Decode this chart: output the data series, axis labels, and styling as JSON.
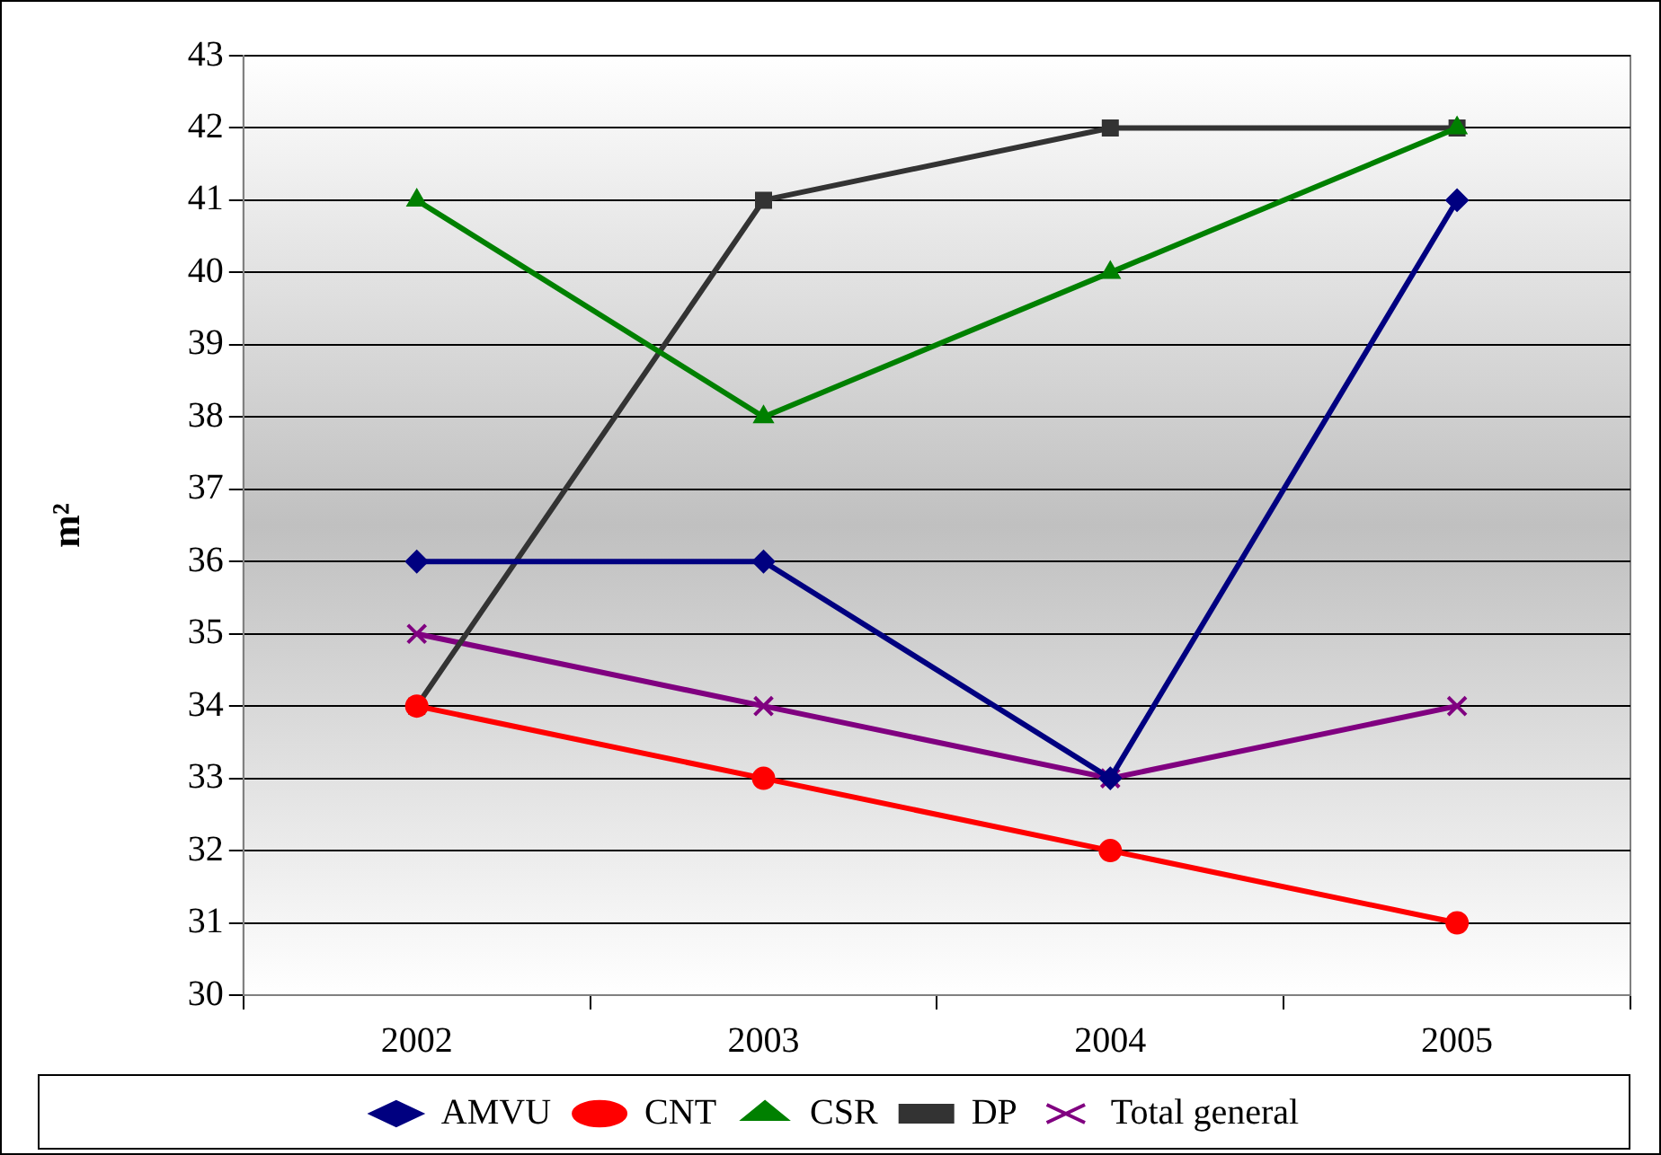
{
  "chart_data": {
    "type": "line",
    "ylabel": "m²",
    "categories": [
      "2002",
      "2003",
      "2004",
      "2005"
    ],
    "series": [
      {
        "name": "AMVU",
        "color": "#000080",
        "marker": "diamond",
        "values": [
          36,
          36,
          33,
          41
        ]
      },
      {
        "name": "CNT",
        "color": "#ff0000",
        "marker": "circle",
        "values": [
          34,
          33,
          32,
          31
        ]
      },
      {
        "name": "CSR",
        "color": "#008000",
        "marker": "triangle",
        "values": [
          41,
          38,
          40,
          42
        ]
      },
      {
        "name": "DP",
        "color": "#333333",
        "marker": "square",
        "values": [
          34,
          41,
          42,
          42
        ]
      },
      {
        "name": "Total general",
        "color": "#800080",
        "marker": "cross",
        "values": [
          35,
          34,
          33,
          34
        ]
      }
    ],
    "ylim": [
      30,
      43
    ],
    "yticks": [
      30,
      31,
      32,
      33,
      34,
      35,
      36,
      37,
      38,
      39,
      40,
      41,
      42,
      43
    ],
    "grid": "y",
    "legend": "bottom",
    "line_style": "solid"
  }
}
